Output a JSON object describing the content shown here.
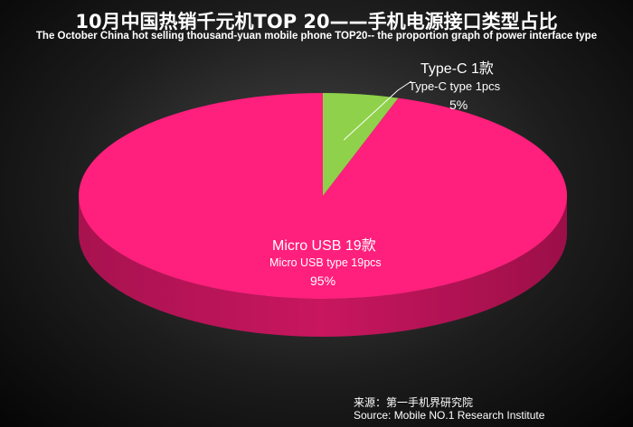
{
  "chart_data": {
    "type": "pie",
    "title": "10月中国热销千元机TOP 20——手机电源接口类型占比",
    "subtitle": "The October China hot selling thousand-yuan mobile phone TOP20-- the proportion graph of power interface type",
    "slices": [
      {
        "key": "typec",
        "label": "Type-C  1款",
        "description": "Type-C type  1pcs",
        "percent_label": "5%",
        "count": 1,
        "percent": 5,
        "color": "#8fd14a"
      },
      {
        "key": "micro",
        "label": "Micro USB 19款",
        "description": "Micro USB type 19pcs",
        "percent_label": "95%",
        "count": 19,
        "percent": 95,
        "color": "#ff1f7c"
      }
    ],
    "source_cn": "来源：第一手机界研究院",
    "source_en": "Source: Mobile NO.1 Research Institute",
    "legend": "none",
    "style": "3d-pie"
  }
}
